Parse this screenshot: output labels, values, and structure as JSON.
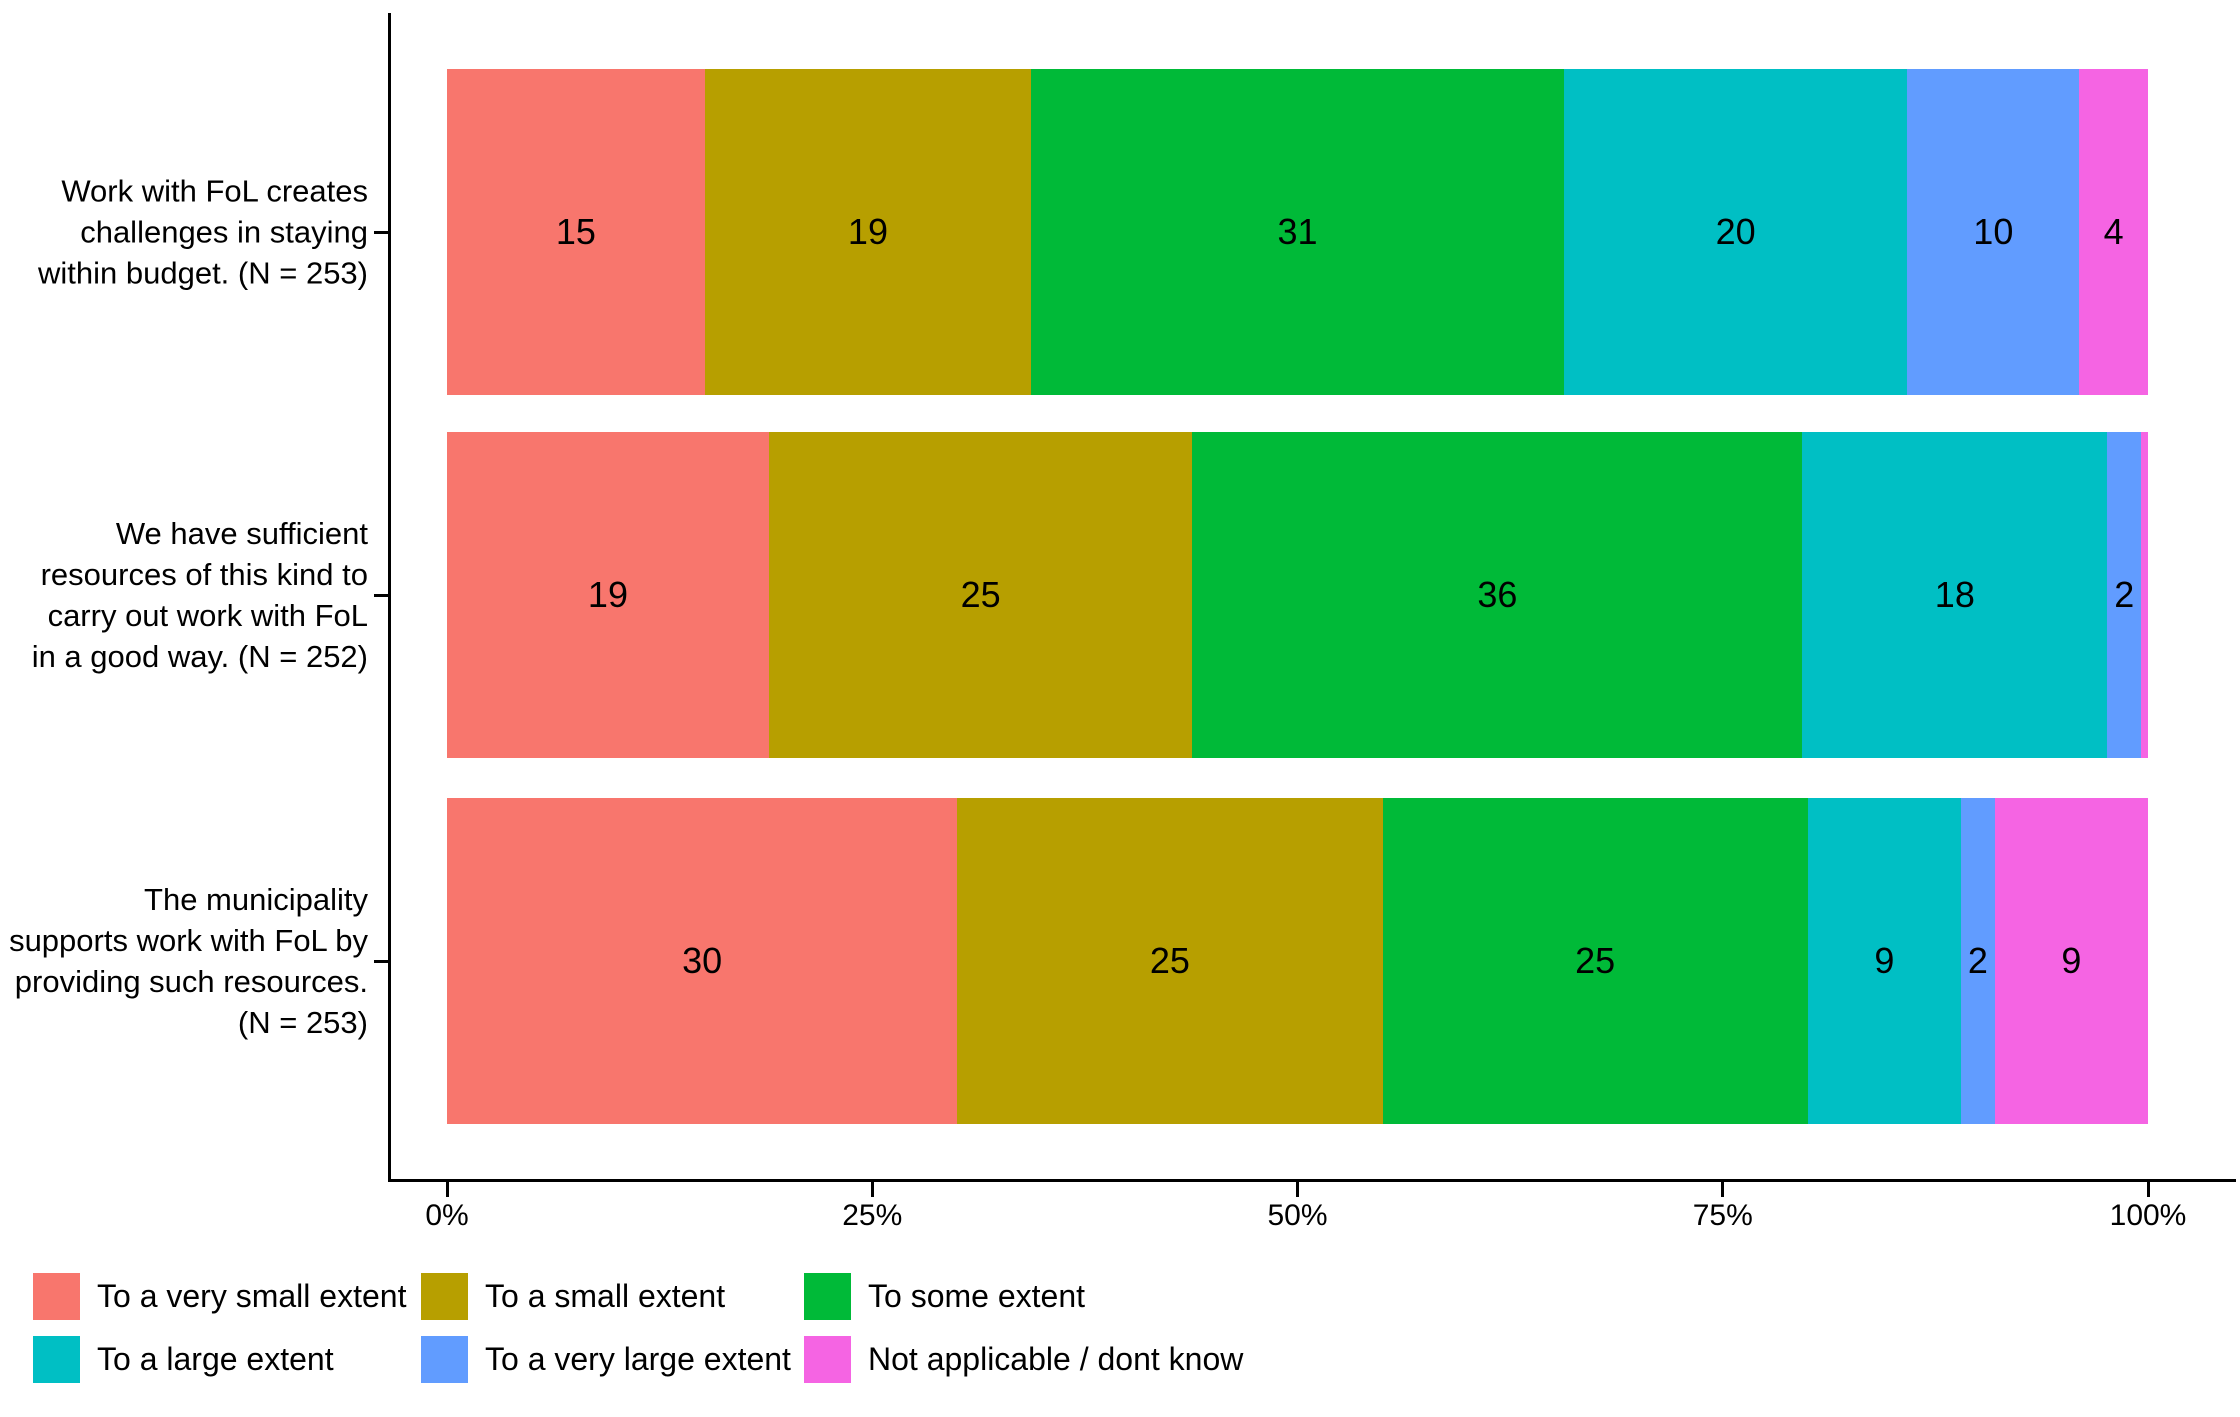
{
  "chart_data": {
    "type": "bar",
    "subtype": "horizontal-stacked-100-percent",
    "title": "",
    "xlabel": "",
    "ylabel": "",
    "grid": false,
    "legend_position": "bottom",
    "x_axis": {
      "ticks": [
        {
          "label": "0%",
          "pct": 0
        },
        {
          "label": "25%",
          "pct": 25
        },
        {
          "label": "50%",
          "pct": 50
        },
        {
          "label": "75%",
          "pct": 75
        },
        {
          "label": "100%",
          "pct": 100
        }
      ],
      "range_pct": [
        0,
        100
      ]
    },
    "legend": [
      {
        "label": "To a very small extent",
        "color": "#F8766D"
      },
      {
        "label": "To a small extent",
        "color": "#B79F00"
      },
      {
        "label": "To some extent",
        "color": "#00BA38"
      },
      {
        "label": "To a large extent",
        "color": "#00BFC4"
      },
      {
        "label": "To a very large extent",
        "color": "#619CFF"
      },
      {
        "label": "Not applicable / dont know",
        "color": "#F564E3"
      }
    ],
    "rows": [
      {
        "label": "Work with FoL creates challenges in staying within budget. (N = 253)",
        "label_lines": [
          "Work with FoL creates",
          "challenges in staying",
          "within budget. (N = 253)"
        ],
        "values": [
          15,
          19,
          31,
          20,
          10,
          4
        ],
        "value_labels": [
          "15",
          "19",
          "31",
          "20",
          "10",
          "4"
        ]
      },
      {
        "label": "We have sufficient resources of this kind to carry out work with FoL in a good way. (N = 252)",
        "label_lines": [
          "We have sufficient",
          "resources of this kind to",
          "carry out work with FoL",
          "in a good way. (N = 252)"
        ],
        "values": [
          19,
          25,
          36,
          18,
          2,
          0.4
        ],
        "value_labels": [
          "19",
          "25",
          "36",
          "18",
          "2",
          ""
        ]
      },
      {
        "label": "The municipality supports work with FoL by providing such resources. (N = 253)",
        "label_lines": [
          "The municipality",
          "supports work with FoL by",
          "providing such resources.",
          "(N = 253)"
        ],
        "values": [
          30,
          25,
          25,
          9,
          2,
          9
        ],
        "value_labels": [
          "30",
          "25",
          "25",
          "9",
          "2",
          "9"
        ]
      }
    ]
  }
}
